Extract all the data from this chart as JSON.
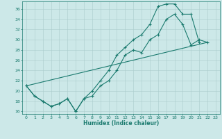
{
  "title": "",
  "xlabel": "Humidex (Indice chaleur)",
  "bg_color": "#cce8e8",
  "grid_color": "#aacccc",
  "line_color": "#1a7a6e",
  "xlim": [
    -0.5,
    23.5
  ],
  "ylim": [
    15.5,
    37.5
  ],
  "yticks": [
    16,
    18,
    20,
    22,
    24,
    26,
    28,
    30,
    32,
    34,
    36
  ],
  "xticks": [
    0,
    1,
    2,
    3,
    4,
    5,
    6,
    7,
    8,
    9,
    10,
    11,
    12,
    13,
    14,
    15,
    16,
    17,
    18,
    19,
    20,
    21,
    22,
    23
  ],
  "line1_x": [
    0,
    1,
    2,
    3,
    4,
    5,
    6,
    7,
    8,
    9,
    10,
    11,
    12,
    13,
    14,
    15,
    16,
    17,
    18,
    19,
    20,
    21,
    22
  ],
  "line1_y": [
    21,
    19,
    18,
    17,
    17.5,
    18.5,
    16,
    18.5,
    19,
    21,
    22,
    24,
    27,
    28,
    27.5,
    30,
    31,
    34,
    35,
    33,
    29,
    30,
    29.5
  ],
  "line2_x": [
    0,
    1,
    2,
    3,
    4,
    5,
    6,
    7,
    8,
    9,
    10,
    11,
    12,
    13,
    14,
    15,
    16,
    17,
    18,
    19,
    20,
    21
  ],
  "line2_y": [
    21,
    19,
    18,
    17,
    17.5,
    18.5,
    16,
    18.5,
    20,
    22,
    24,
    27,
    28.5,
    30,
    31,
    33,
    36.5,
    37,
    37,
    35,
    35,
    29.5
  ],
  "line3_x": [
    0,
    22
  ],
  "line3_y": [
    21,
    29.5
  ]
}
